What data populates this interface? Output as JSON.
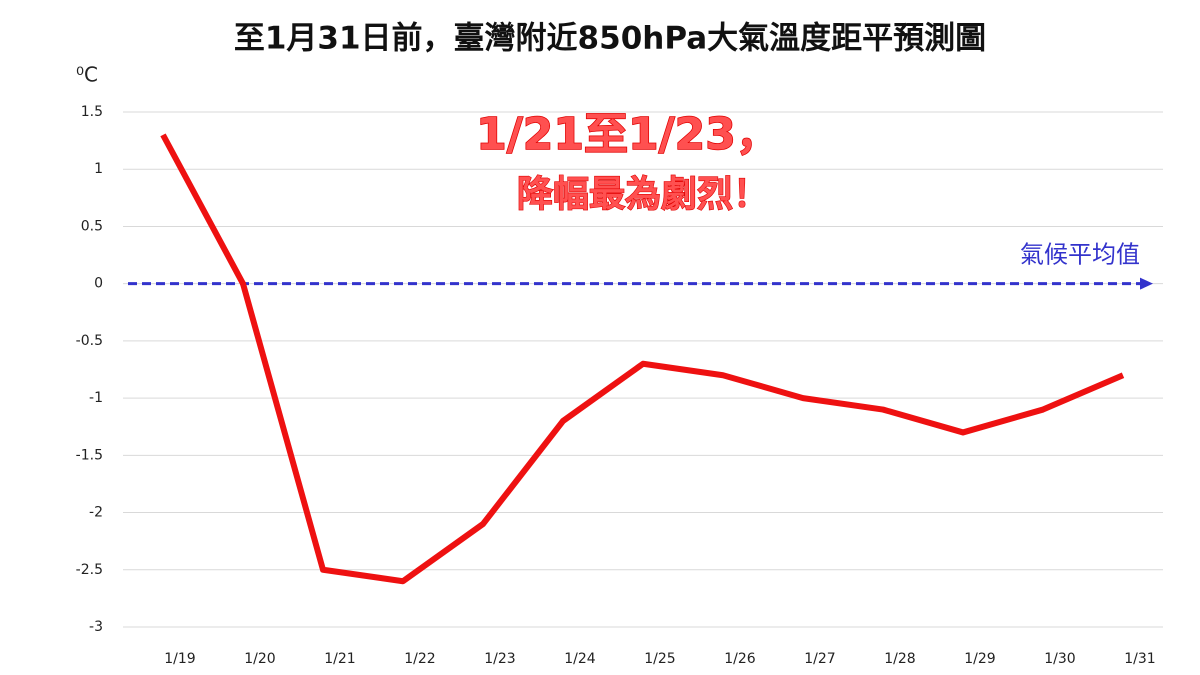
{
  "chart_data": {
    "type": "line",
    "title": "至1月31日前，臺灣附近850hPa大氣溫度距平預測圖",
    "y_unit": "⁰C",
    "categories": [
      "1/19",
      "1/20",
      "1/21",
      "1/22",
      "1/23",
      "1/24",
      "1/25",
      "1/26",
      "1/27",
      "1/28",
      "1/29",
      "1/30",
      "1/31"
    ],
    "series": [
      {
        "color": "#ee1111",
        "values": [
          1.3,
          0,
          -2.5,
          -2.6,
          -2.1,
          -1.2,
          -0.7,
          -0.8,
          -1.0,
          -1.1,
          -1.3,
          -1.1,
          -0.8
        ]
      }
    ],
    "ylim": [
      -3,
      1.5
    ],
    "yticks": [
      -3,
      -2.5,
      -2,
      -1.5,
      -1,
      -0.5,
      0,
      0.5,
      1,
      1.5
    ],
    "grid": true,
    "reference_line": {
      "value": 0,
      "label": "氣候平均值",
      "color": "#3333cc"
    },
    "annotations": [
      "1/21至1/23，",
      "降幅最為劇烈！"
    ]
  }
}
